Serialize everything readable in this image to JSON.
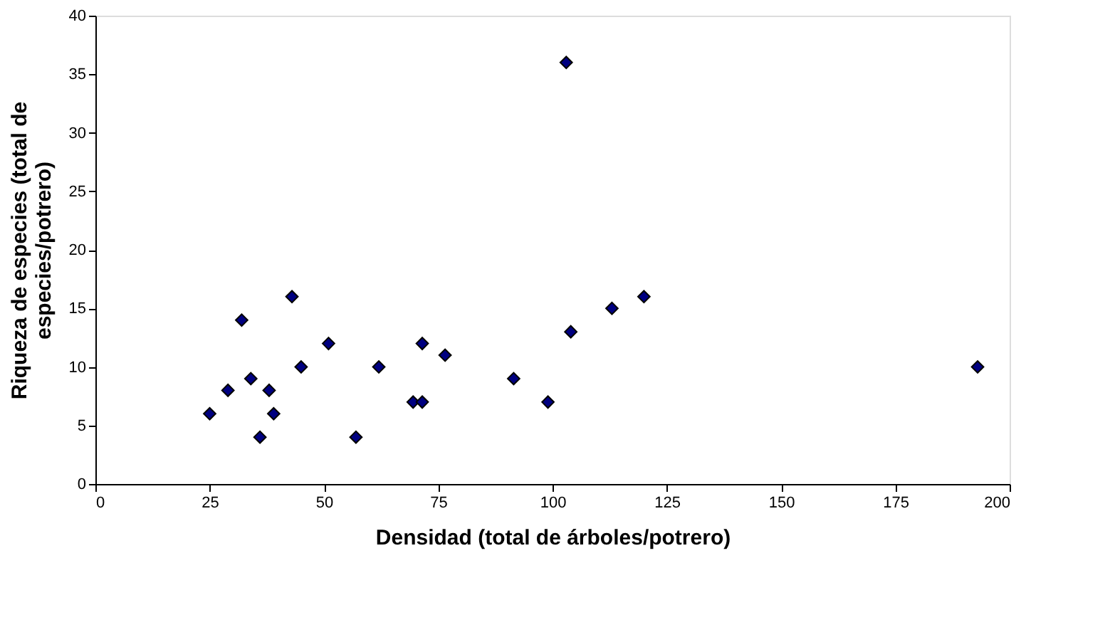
{
  "chart_data": {
    "type": "scatter",
    "xlabel": "Densidad (total de árboles/potrero)",
    "ylabel": "Riqueza de especies (total de especies/potrero)",
    "x": [
      25,
      29,
      32,
      34,
      36,
      38,
      39,
      43,
      45,
      51,
      57,
      62,
      69.5,
      71.5,
      71.5,
      76.5,
      91.5,
      99,
      103,
      104,
      113,
      120,
      193
    ],
    "series": [
      {
        "color": "#000080",
        "values": [
          6,
          8,
          14,
          9,
          4,
          8,
          6,
          16,
          10,
          12,
          4,
          10,
          7,
          7,
          12,
          11,
          9,
          7,
          36,
          13,
          15,
          16,
          10
        ]
      }
    ],
    "marker": "diamond",
    "xlim": [
      0,
      200
    ],
    "xticks": [
      0,
      25,
      50,
      75,
      100,
      125,
      150,
      175,
      200
    ],
    "ylim": [
      0,
      40
    ],
    "yticks": [
      0,
      5,
      10,
      15,
      20,
      25,
      30,
      35,
      40
    ],
    "grid": false
  }
}
